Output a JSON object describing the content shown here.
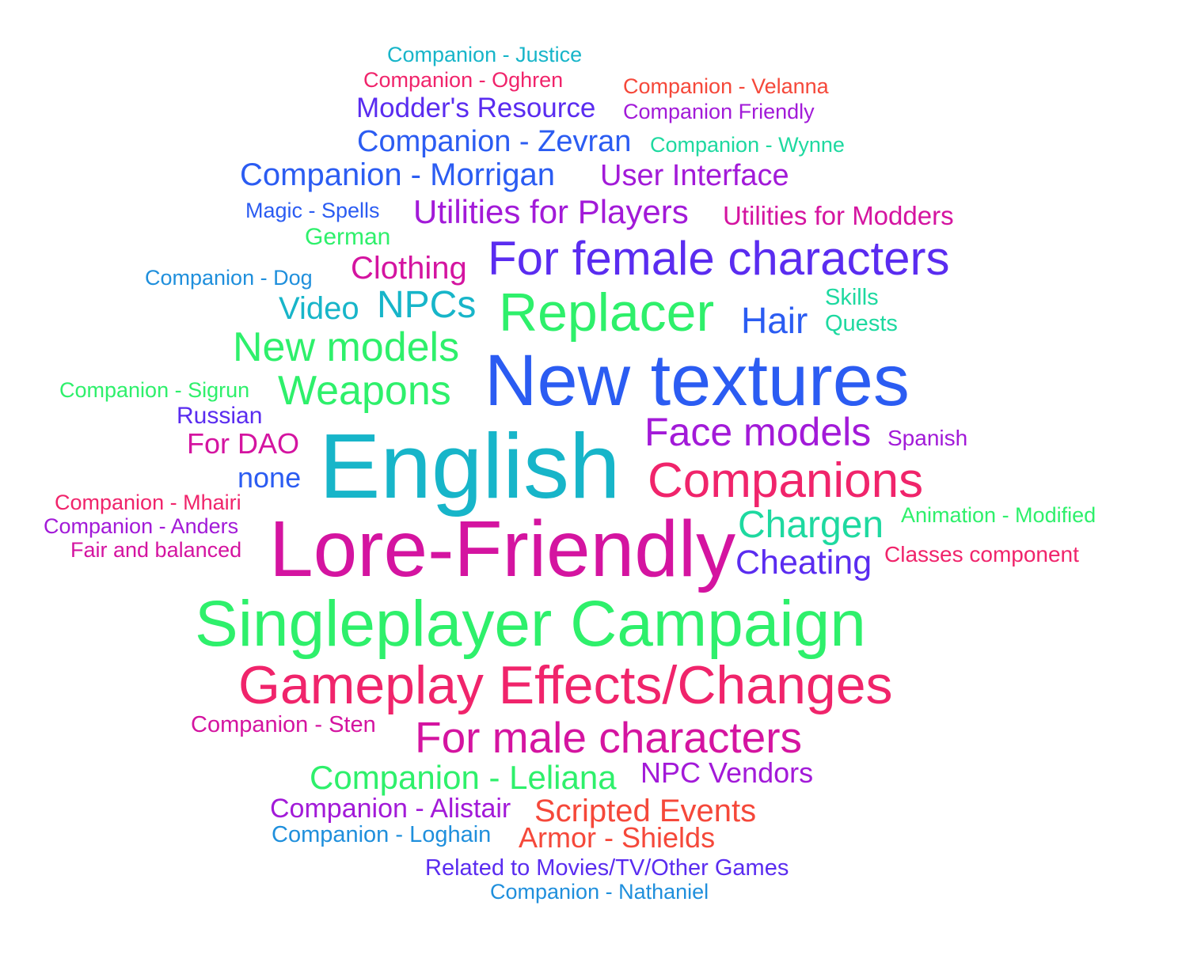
{
  "words": [
    {
      "text": "Companion - Justice",
      "color": "#17b5c9"
    },
    {
      "text": "Companion - Oghren",
      "color": "#f0246b"
    },
    {
      "text": "Companion - Velanna",
      "color": "#f5483a"
    },
    {
      "text": "Modder's Resource",
      "color": "#5a2cf0"
    },
    {
      "text": "Companion Friendly",
      "color": "#a21ad8"
    },
    {
      "text": "Companion - Zevran",
      "color": "#2b5cf2"
    },
    {
      "text": "Companion - Wynne",
      "color": "#1ed9a0"
    },
    {
      "text": "Companion - Morrigan",
      "color": "#2b5cf2"
    },
    {
      "text": "User Interface",
      "color": "#a21ad8"
    },
    {
      "text": "Magic - Spells",
      "color": "#2b5cf2"
    },
    {
      "text": "Utilities for Players",
      "color": "#a21ad8"
    },
    {
      "text": "Utilities for Modders",
      "color": "#d414a0"
    },
    {
      "text": "German",
      "color": "#2ef06b"
    },
    {
      "text": "Clothing",
      "color": "#d414a0"
    },
    {
      "text": "For female characters",
      "color": "#5a2cf0"
    },
    {
      "text": "Companion - Dog",
      "color": "#1f8fdc"
    },
    {
      "text": "Video",
      "color": "#17b5c9"
    },
    {
      "text": "NPCs",
      "color": "#17b5c9"
    },
    {
      "text": "Replacer",
      "color": "#2ef06b"
    },
    {
      "text": "Hair",
      "color": "#2b5cf2"
    },
    {
      "text": "Skills",
      "color": "#1ed9a0"
    },
    {
      "text": "Quests",
      "color": "#1ed9a0"
    },
    {
      "text": "New models",
      "color": "#2ef06b"
    },
    {
      "text": "New textures",
      "color": "#2b5cf2"
    },
    {
      "text": "Companion - Sigrun",
      "color": "#2ef06b"
    },
    {
      "text": "Weapons",
      "color": "#2ef06b"
    },
    {
      "text": "Russian",
      "color": "#5a2cf0"
    },
    {
      "text": "Face models",
      "color": "#a21ad8"
    },
    {
      "text": "Spanish",
      "color": "#a21ad8"
    },
    {
      "text": "For DAO",
      "color": "#d414a0"
    },
    {
      "text": "English",
      "color": "#17b5c9"
    },
    {
      "text": "Companions",
      "color": "#f0246b"
    },
    {
      "text": "none",
      "color": "#2b5cf2"
    },
    {
      "text": "Companion - Mhairi",
      "color": "#f0246b"
    },
    {
      "text": "Chargen",
      "color": "#1ed9a0"
    },
    {
      "text": "Animation - Modified",
      "color": "#2ef06b"
    },
    {
      "text": "Companion - Anders",
      "color": "#a21ad8"
    },
    {
      "text": "Lore-Friendly",
      "color": "#d414a0"
    },
    {
      "text": "Fair and balanced",
      "color": "#d414a0"
    },
    {
      "text": "Cheating",
      "color": "#5a2cf0"
    },
    {
      "text": "Classes component",
      "color": "#f0246b"
    },
    {
      "text": "Singleplayer Campaign",
      "color": "#2ef06b"
    },
    {
      "text": "Gameplay Effects/Changes",
      "color": "#f0246b"
    },
    {
      "text": "Companion - Sten",
      "color": "#d414a0"
    },
    {
      "text": "For male characters",
      "color": "#d414a0"
    },
    {
      "text": "Companion - Leliana",
      "color": "#2ef06b"
    },
    {
      "text": "NPC Vendors",
      "color": "#a21ad8"
    },
    {
      "text": "Companion - Alistair",
      "color": "#a21ad8"
    },
    {
      "text": "Scripted Events",
      "color": "#f5483a"
    },
    {
      "text": "Companion - Loghain",
      "color": "#1f8fdc"
    },
    {
      "text": "Armor - Shields",
      "color": "#f5483a"
    },
    {
      "text": "Related to Movies/TV/Other Games",
      "color": "#5a2cf0"
    },
    {
      "text": "Companion - Nathaniel",
      "color": "#1f8fdc"
    }
  ]
}
